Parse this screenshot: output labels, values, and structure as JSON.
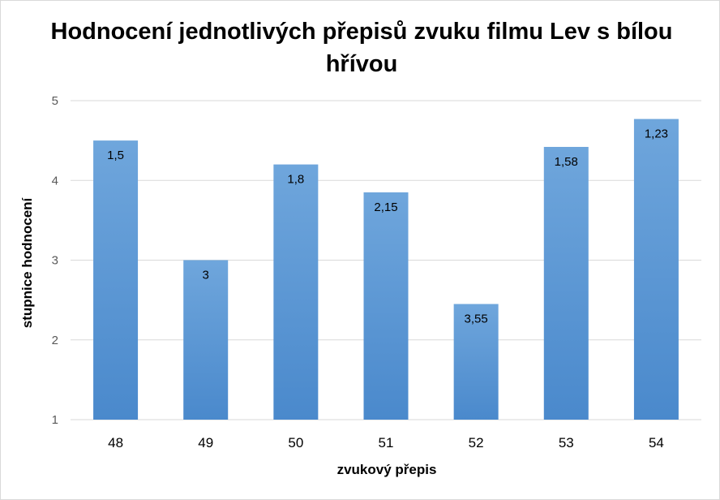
{
  "chart_data": {
    "type": "bar",
    "title": "Hodnocení jednotlivých přepisů zvuku filmu Lev s bílou hřívou",
    "xlabel": "zvukový přepis",
    "ylabel": "stupnice hodnocení",
    "categories": [
      "48",
      "49",
      "50",
      "51",
      "52",
      "53",
      "54"
    ],
    "series": [
      {
        "values": [
          4.5,
          3.0,
          4.2,
          3.85,
          2.45,
          4.42,
          4.77
        ],
        "data_labels": [
          "1,5",
          "3",
          "1,8",
          "2,15",
          "3,55",
          "1,58",
          "1,23"
        ]
      }
    ],
    "ylim": [
      1,
      5
    ],
    "yticks": [
      1,
      2,
      3,
      4,
      5
    ],
    "grid": true,
    "legend": "none",
    "colors": {
      "bar_top": "#6fa6dc",
      "bar_bottom": "#4a89cc",
      "grid": "#d9d9d9",
      "axis_text": "#595959"
    }
  }
}
